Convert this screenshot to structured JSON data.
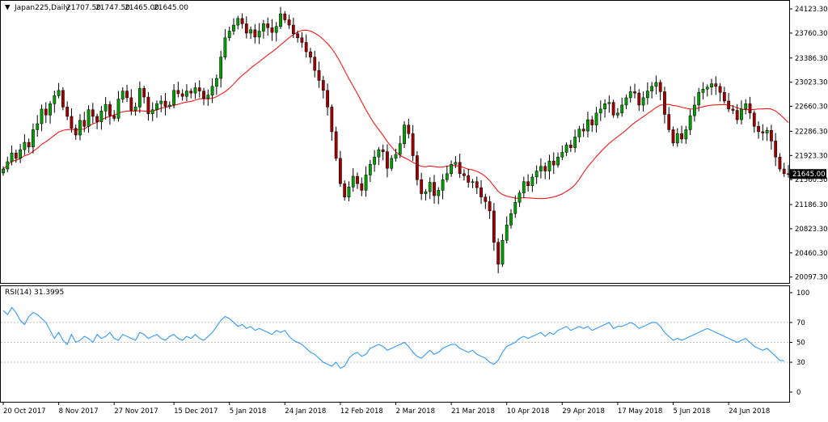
{
  "chart_header": {
    "symbol": "Japan225,Daily",
    "open": "21707.50",
    "high": "21747.50",
    "low": "21465.00",
    "close": "21645.00"
  },
  "rsi_header": {
    "label": "RSI(14)",
    "value": "31.3995"
  },
  "colors": {
    "bull_candle": "#00a000",
    "bear_candle": "#a00000",
    "wick": "#000000",
    "sma": "#ff0000",
    "rsi_line": "#1e90ff",
    "grid": "#c0c0c0",
    "axis": "#000000",
    "last_price_box": "#000000",
    "last_price_text": "#ffffff"
  },
  "chart_data": [
    {
      "type": "candlestick",
      "title": "",
      "ylim": [
        20009.3,
        24245
      ],
      "y_ticks": [
        "24123.30",
        "23760.30",
        "23386.30",
        "23023.30",
        "22660.30",
        "22286.30",
        "21923.30",
        "21560.30",
        "21186.30",
        "20823.30",
        "20460.30",
        "20097.30"
      ],
      "y_tick_values": [
        24123.3,
        23760.3,
        23386.3,
        23023.3,
        22660.3,
        22286.3,
        21923.3,
        21560.3,
        21186.3,
        20823.3,
        20460.3,
        20097.3
      ],
      "last_price": 21645.0,
      "last_price_label": "21645.00",
      "x_ticks": [
        {
          "label": "20 Oct 2017",
          "index": 0
        },
        {
          "label": "8 Nov 2017",
          "index": 13
        },
        {
          "label": "27 Nov 2017",
          "index": 26
        },
        {
          "label": "15 Dec 2017",
          "index": 40
        },
        {
          "label": "5 Jan 2018",
          "index": 53
        },
        {
          "label": "24 Jan 2018",
          "index": 66
        },
        {
          "label": "12 Feb 2018",
          "index": 79
        },
        {
          "label": "2 Mar 2018",
          "index": 92
        },
        {
          "label": "21 Mar 2018",
          "index": 105
        },
        {
          "label": "10 Apr 2018",
          "index": 118
        },
        {
          "label": "29 Apr 2018",
          "index": 131
        },
        {
          "label": "17 May 2018",
          "index": 144
        },
        {
          "label": "5 Jun 2018",
          "index": 157
        },
        {
          "label": "24 Jun 2018",
          "index": 170
        }
      ],
      "closes": [
        21720,
        21830,
        21960,
        21880,
        22010,
        22120,
        22050,
        22310,
        22400,
        22620,
        22530,
        22700,
        22820,
        22900,
        22650,
        22510,
        22330,
        22230,
        22450,
        22360,
        22610,
        22510,
        22430,
        22590,
        22690,
        22520,
        22480,
        22770,
        22890,
        22790,
        22600,
        22650,
        22930,
        22800,
        22550,
        22610,
        22700,
        22740,
        22660,
        22680,
        22900,
        22850,
        22810,
        22890,
        22860,
        22940,
        22890,
        22780,
        22830,
        22960,
        23080,
        23400,
        23690,
        23790,
        23880,
        23980,
        23900,
        23760,
        23810,
        23700,
        23790,
        23900,
        23840,
        23770,
        23860,
        24050,
        23960,
        23880,
        23750,
        23690,
        23620,
        23480,
        23400,
        23200,
        23050,
        22900,
        22650,
        22280,
        21880,
        21500,
        21300,
        21450,
        21610,
        21500,
        21400,
        21630,
        21790,
        21900,
        22010,
        21980,
        21730,
        21880,
        21940,
        22100,
        22380,
        22250,
        21920,
        21560,
        21350,
        21380,
        21520,
        21320,
        21400,
        21560,
        21650,
        21790,
        21820,
        21650,
        21620,
        21520,
        21530,
        21440,
        21300,
        21230,
        21090,
        20620,
        20290,
        20650,
        20880,
        21050,
        21220,
        21360,
        21530,
        21470,
        21600,
        21690,
        21760,
        21690,
        21840,
        21780,
        21900,
        21970,
        22080,
        22040,
        22200,
        22320,
        22290,
        22460,
        22380,
        22560,
        22620,
        22700,
        22720,
        22530,
        22560,
        22680,
        22790,
        22880,
        22860,
        22680,
        22790,
        22890,
        22960,
        23020,
        22880,
        22540,
        22310,
        22110,
        22250,
        22170,
        22310,
        22520,
        22680,
        22870,
        22920,
        22950,
        23000,
        22960,
        22870,
        22740,
        22620,
        22600,
        22460,
        22620,
        22700,
        22560,
        22360,
        22280,
        22260,
        22300,
        22140,
        21900,
        21720,
        21650,
        21645
      ],
      "sma_period": 20,
      "indicator": {
        "name": "RSI",
        "period": 14,
        "ylim": [
          0,
          100
        ],
        "y_ticks": [
          100,
          70,
          50,
          30,
          0
        ],
        "levels": [
          70,
          50,
          30
        ],
        "values": [
          82,
          78,
          85,
          80,
          72,
          68,
          76,
          80,
          78,
          74,
          70,
          62,
          54,
          60,
          52,
          48,
          58,
          50,
          52,
          56,
          54,
          50,
          58,
          54,
          56,
          60,
          54,
          52,
          58,
          56,
          54,
          52,
          60,
          58,
          54,
          56,
          58,
          54,
          52,
          56,
          58,
          54,
          52,
          56,
          54,
          58,
          54,
          52,
          56,
          60,
          66,
          72,
          76,
          74,
          70,
          66,
          68,
          64,
          66,
          62,
          64,
          62,
          60,
          58,
          62,
          60,
          62,
          56,
          52,
          50,
          48,
          44,
          40,
          38,
          34,
          30,
          28,
          26,
          30,
          24,
          26,
          34,
          38,
          40,
          36,
          38,
          44,
          46,
          48,
          46,
          42,
          44,
          46,
          48,
          50,
          46,
          40,
          36,
          34,
          38,
          42,
          38,
          40,
          44,
          46,
          48,
          48,
          44,
          42,
          40,
          42,
          38,
          36,
          34,
          30,
          28,
          32,
          40,
          46,
          48,
          50,
          54,
          56,
          54,
          56,
          58,
          60,
          56,
          60,
          58,
          62,
          64,
          66,
          62,
          64,
          66,
          64,
          66,
          62,
          64,
          66,
          68,
          70,
          64,
          66,
          66,
          68,
          70,
          68,
          64,
          66,
          68,
          70,
          70,
          66,
          60,
          56,
          52,
          54,
          52,
          54,
          56,
          58,
          60,
          62,
          64,
          62,
          60,
          58,
          56,
          54,
          52,
          50,
          52,
          54,
          50,
          46,
          44,
          42,
          44,
          40,
          36,
          32,
          31.3995
        ]
      }
    }
  ]
}
